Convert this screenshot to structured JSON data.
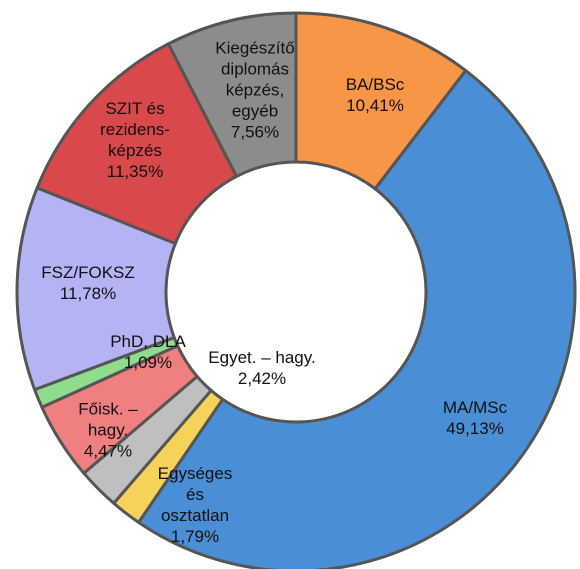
{
  "chart_data": {
    "type": "donut",
    "categories": [
      "BA/BSc",
      "MA/MSc",
      "Egységes\nés\nosztatlan",
      "Egyet. – hagy.",
      "Főisk. –\nhagy.",
      "PhD, DLA",
      "FSZ/FOKSZ",
      "SZIT és\nrezidens-\nképzés",
      "Kiegészítő\ndiplomás\nképzés,\negyéb"
    ],
    "values": [
      10.41,
      49.13,
      1.79,
      2.42,
      4.47,
      1.09,
      11.78,
      11.35,
      7.56
    ],
    "value_labels": [
      "10,41%",
      "49,13%",
      "1,79%",
      "2,42%",
      "4,47%",
      "1,09%",
      "11,78%",
      "11,35%",
      "7,56%"
    ],
    "colors": [
      "#f79646",
      "#4a8fd6",
      "#f5d25a",
      "#bfbfbf",
      "#f08080",
      "#8fdc8f",
      "#b4b4f5",
      "#d9494c",
      "#8c8c8c"
    ]
  }
}
